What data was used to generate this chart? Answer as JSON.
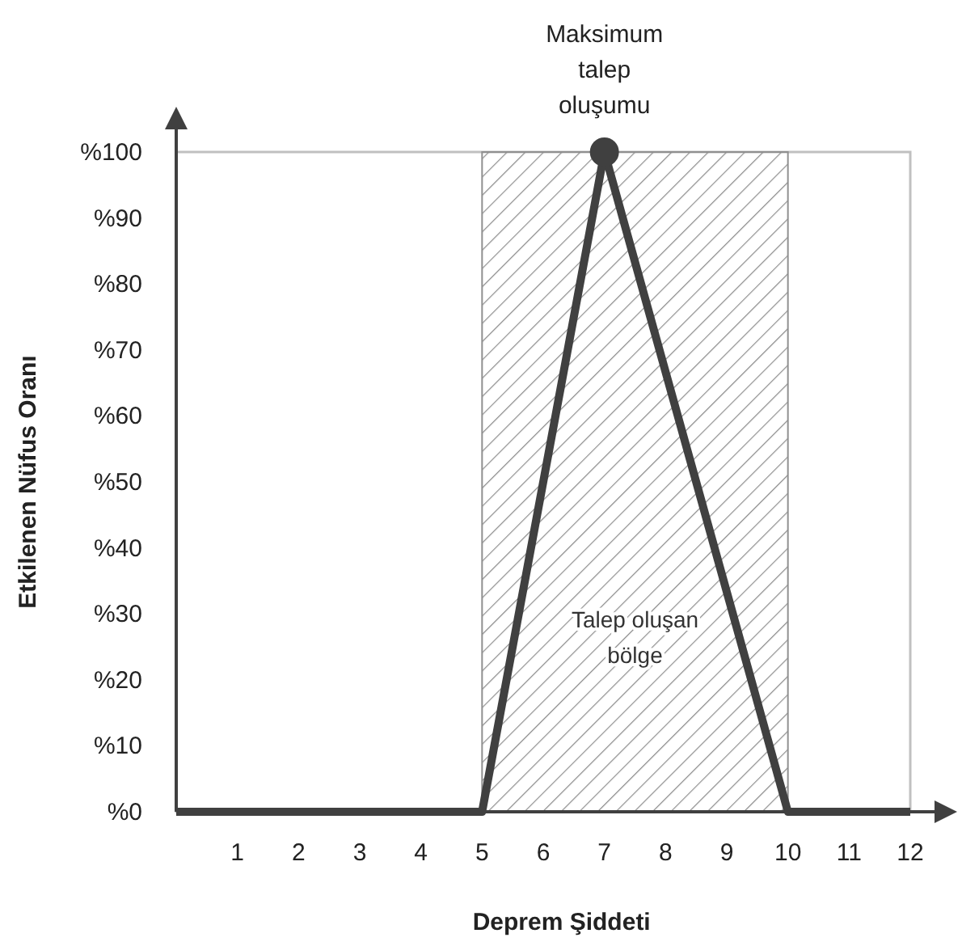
{
  "chart_data": {
    "type": "line",
    "xlabel": "Deprem Şiddeti",
    "ylabel": "Etkilenen Nüfus Oranı",
    "x": [
      0,
      5,
      7,
      10,
      12
    ],
    "series": [
      {
        "color": "#404040",
        "values": [
          0,
          0,
          100,
          0,
          0
        ],
        "marker": "none"
      },
      {
        "type": "scatter",
        "color": "#404040",
        "x": [
          7
        ],
        "values": [
          100
        ],
        "marker": "circle"
      }
    ],
    "xlim": [
      0,
      12
    ],
    "xticks": [
      1,
      2,
      3,
      4,
      5,
      6,
      7,
      8,
      9,
      10,
      11,
      12
    ],
    "ylim": [
      0,
      100
    ],
    "yticks": [
      {
        "value": 0,
        "label": "%0"
      },
      {
        "value": 10,
        "label": "%10"
      },
      {
        "value": 20,
        "label": "%20"
      },
      {
        "value": 30,
        "label": "%30"
      },
      {
        "value": 40,
        "label": "%40"
      },
      {
        "value": 50,
        "label": "%50"
      },
      {
        "value": 60,
        "label": "%60"
      },
      {
        "value": 70,
        "label": "%70"
      },
      {
        "value": 80,
        "label": "%80"
      },
      {
        "value": 90,
        "label": "%90"
      },
      {
        "value": 100,
        "label": "%100"
      }
    ],
    "bands": [
      {
        "axis": "x",
        "from": 5,
        "to": 10,
        "label": "Talep oluşan bölge",
        "color": "#8c8c8c"
      }
    ],
    "annotations": [
      {
        "text": "Maksimum talep oluşumu",
        "x": 7,
        "y": 100
      }
    ],
    "grid": false
  }
}
